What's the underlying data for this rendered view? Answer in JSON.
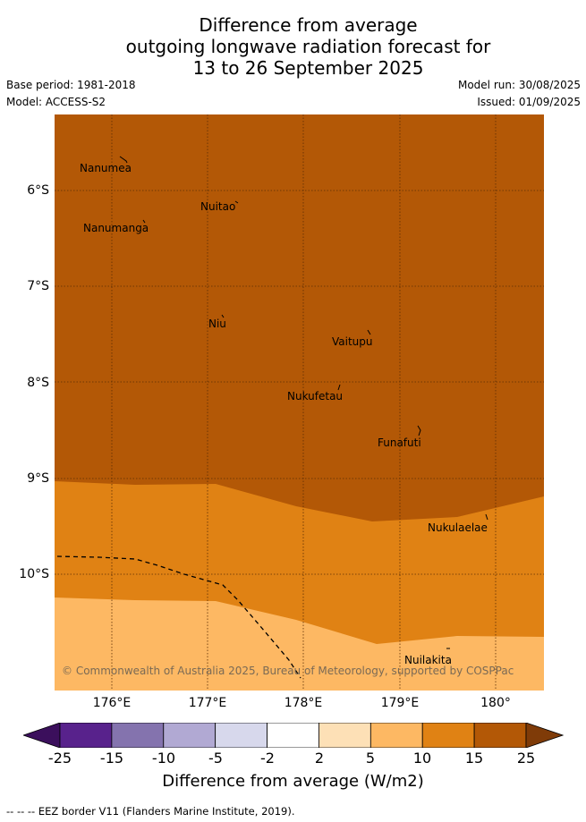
{
  "title": {
    "line1": "Difference from average",
    "line2": "outgoing longwave radiation forecast for",
    "line3": "13 to 26 September 2025"
  },
  "meta": {
    "base_period": "Base period: 1981-2018",
    "model": "Model: ACCESS-S2",
    "model_run": "Model run: 30/08/2025",
    "issued": "Issued: 01/09/2025"
  },
  "places": [
    {
      "name": "Nanumea"
    },
    {
      "name": "Nuitao"
    },
    {
      "name": "Nanumanga"
    },
    {
      "name": "Niu"
    },
    {
      "name": "Vaitupu"
    },
    {
      "name": "Nukufetau"
    },
    {
      "name": "Funafuti"
    },
    {
      "name": "Nukulaelae"
    },
    {
      "name": "Nuilakita"
    }
  ],
  "copyright": "© Commonwealth of Australia 2025, Bureau of Meteorology, supported by COSPPac",
  "lat_labels": [
    "6°S",
    "7°S",
    "8°S",
    "9°S",
    "10°S"
  ],
  "lon_labels": [
    "176°E",
    "177°E",
    "178°E",
    "179°E",
    "180°"
  ],
  "colorbar": {
    "ticks": [
      "-25",
      "-15",
      "-10",
      "-5",
      "-2",
      "2",
      "5",
      "10",
      "15",
      "25"
    ],
    "colors": [
      "#58228c",
      "#8473ae",
      "#b1a9d3",
      "#d7d8ec",
      "#ffffff",
      "#fde0b6",
      "#fdb863",
      "#e08214",
      "#b35806"
    ],
    "under_color": "#3b0f5c",
    "over_color": "#7f3b08",
    "label": "Difference from average (W/m2)"
  },
  "legend_note": "-- -- -- EEZ border V11 (Flanders Marine Institute, 2019).",
  "chart_data": {
    "type": "heatmap",
    "variable": "Difference from average (W/m2)",
    "x_range_deg_e": [
      175.4,
      180.5
    ],
    "y_range_deg_s": [
      5.35,
      11.35
    ],
    "bands": [
      {
        "range": "15 to 25",
        "color": "#b35806",
        "region": "north of ~9°S to ~9.4°S"
      },
      {
        "range": "10 to 15",
        "color": "#e08214",
        "region": "between ~9°S–9.4°S and ~10.2°S–10.7°S"
      },
      {
        "range": "5 to 10",
        "color": "#fdb863",
        "region": "south of ~10.2°S–10.7°S"
      }
    ]
  }
}
